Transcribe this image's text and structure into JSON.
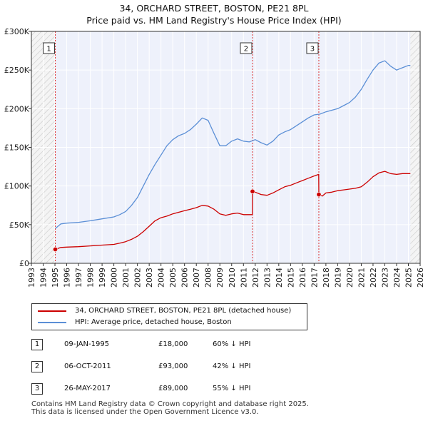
{
  "title_line1": "34, ORCHARD STREET, BOSTON, PE21 8PL",
  "title_line2": "Price paid vs. HM Land Registry's House Price Index (HPI)",
  "chart_data": {
    "type": "line",
    "title": "34, ORCHARD STREET, BOSTON, PE21 8PL — Price paid vs. HM Land Registry's House Price Index (HPI)",
    "xlabel": "",
    "ylabel": "",
    "xlim": [
      1993,
      2026
    ],
    "ylim": [
      0,
      300000
    ],
    "x_ticks": [
      1993,
      1994,
      1995,
      1996,
      1997,
      1998,
      1999,
      2000,
      2001,
      2002,
      2003,
      2004,
      2005,
      2006,
      2007,
      2008,
      2009,
      2010,
      2011,
      2012,
      2013,
      2014,
      2015,
      2016,
      2017,
      2018,
      2019,
      2020,
      2021,
      2022,
      2023,
      2024,
      2025,
      2026
    ],
    "y_ticks": [
      {
        "value": 0,
        "label": "£0"
      },
      {
        "value": 50000,
        "label": "£50K"
      },
      {
        "value": 100000,
        "label": "£100K"
      },
      {
        "value": 150000,
        "label": "£150K"
      },
      {
        "value": 200000,
        "label": "£200K"
      },
      {
        "value": 250000,
        "label": "£250K"
      },
      {
        "value": 300000,
        "label": "£300K"
      }
    ],
    "hatched_regions": [
      [
        1993,
        1995.03
      ],
      [
        2025.17,
        2026
      ]
    ],
    "series": [
      {
        "name": "34, ORCHARD STREET, BOSTON, PE21 8PL (detached house)",
        "color": "#cc0000",
        "x": [
          1995.03,
          1995.5,
          1996,
          1997,
          1998,
          1999,
          2000,
          2000.5,
          2001,
          2001.5,
          2002,
          2002.5,
          2003,
          2003.5,
          2004,
          2004.5,
          2005,
          2005.5,
          2006,
          2006.5,
          2007,
          2007.5,
          2008,
          2008.5,
          2009,
          2009.5,
          2010,
          2010.5,
          2011,
          2011.5,
          2011.76,
          2011.77,
          2012,
          2012.5,
          2013,
          2013.5,
          2014,
          2014.5,
          2015,
          2015.5,
          2016,
          2016.5,
          2017,
          2017.39,
          2017.4,
          2017.7,
          2018,
          2018.5,
          2019,
          2019.5,
          2020,
          2020.5,
          2021,
          2021.5,
          2022,
          2022.5,
          2023,
          2023.5,
          2024,
          2024.5,
          2025,
          2025.17
        ],
        "values": [
          18000,
          20500,
          21000,
          21500,
          22500,
          23500,
          24500,
          26000,
          28000,
          31000,
          35000,
          41000,
          48000,
          55000,
          59000,
          61000,
          64000,
          66000,
          68000,
          70000,
          72000,
          75000,
          74000,
          70000,
          64000,
          62000,
          64000,
          65000,
          63000,
          63000,
          63000,
          93000,
          92000,
          89000,
          88000,
          91000,
          95000,
          99000,
          101000,
          104000,
          107000,
          110000,
          113000,
          115000,
          89000,
          87000,
          91000,
          92000,
          94000,
          95000,
          96000,
          97000,
          99000,
          105000,
          112000,
          117000,
          119000,
          116000,
          115000,
          116000,
          116000,
          116000
        ]
      },
      {
        "name": "HPI: Average price, detached house, Boston",
        "color": "#5b8fd6",
        "x": [
          1995.03,
          1995.5,
          1996,
          1997,
          1998,
          1999,
          2000,
          2000.5,
          2001,
          2001.5,
          2002,
          2002.5,
          2003,
          2003.5,
          2004,
          2004.5,
          2005,
          2005.5,
          2006,
          2006.5,
          2007,
          2007.5,
          2008,
          2008.5,
          2009,
          2009.5,
          2010,
          2010.5,
          2011,
          2011.5,
          2012,
          2012.5,
          2013,
          2013.5,
          2014,
          2014.5,
          2015,
          2015.5,
          2016,
          2016.5,
          2017,
          2017.5,
          2018,
          2018.5,
          2019,
          2019.5,
          2020,
          2020.5,
          2021,
          2021.5,
          2022,
          2022.5,
          2023,
          2023.5,
          2024,
          2024.5,
          2025,
          2025.17
        ],
        "values": [
          45000,
          51000,
          52000,
          53000,
          55000,
          57500,
          60000,
          63000,
          67000,
          75000,
          85000,
          100000,
          115000,
          128000,
          140000,
          152000,
          160000,
          165000,
          168000,
          173000,
          180000,
          188000,
          185000,
          168000,
          152000,
          152000,
          158000,
          161000,
          158000,
          157000,
          160000,
          156000,
          153000,
          158000,
          166000,
          170000,
          173000,
          178000,
          183000,
          188000,
          192000,
          193000,
          196000,
          198000,
          200000,
          204000,
          208000,
          215000,
          225000,
          238000,
          250000,
          259000,
          262000,
          255000,
          250000,
          253000,
          256000,
          256000
        ]
      }
    ],
    "sales": [
      {
        "label": "1",
        "x": 1995.03,
        "price": 18000
      },
      {
        "label": "2",
        "x": 2011.77,
        "price": 93000
      },
      {
        "label": "3",
        "x": 2017.4,
        "price": 89000
      }
    ]
  },
  "legend": [
    {
      "label": "34, ORCHARD STREET, BOSTON, PE21 8PL (detached house)",
      "color": "#cc0000"
    },
    {
      "label": "HPI: Average price, detached house, Boston",
      "color": "#5b8fd6"
    }
  ],
  "sales_table": [
    {
      "num": "1",
      "date": "09-JAN-1995",
      "price": "£18,000",
      "hpi": "60% ↓ HPI"
    },
    {
      "num": "2",
      "date": "06-OCT-2011",
      "price": "£93,000",
      "hpi": "42% ↓ HPI"
    },
    {
      "num": "3",
      "date": "26-MAY-2017",
      "price": "£89,000",
      "hpi": "55% ↓ HPI"
    }
  ],
  "footer_line1": "Contains HM Land Registry data © Crown copyright and database right 2025.",
  "footer_line2": "This data is licensed under the Open Government Licence v3.0."
}
